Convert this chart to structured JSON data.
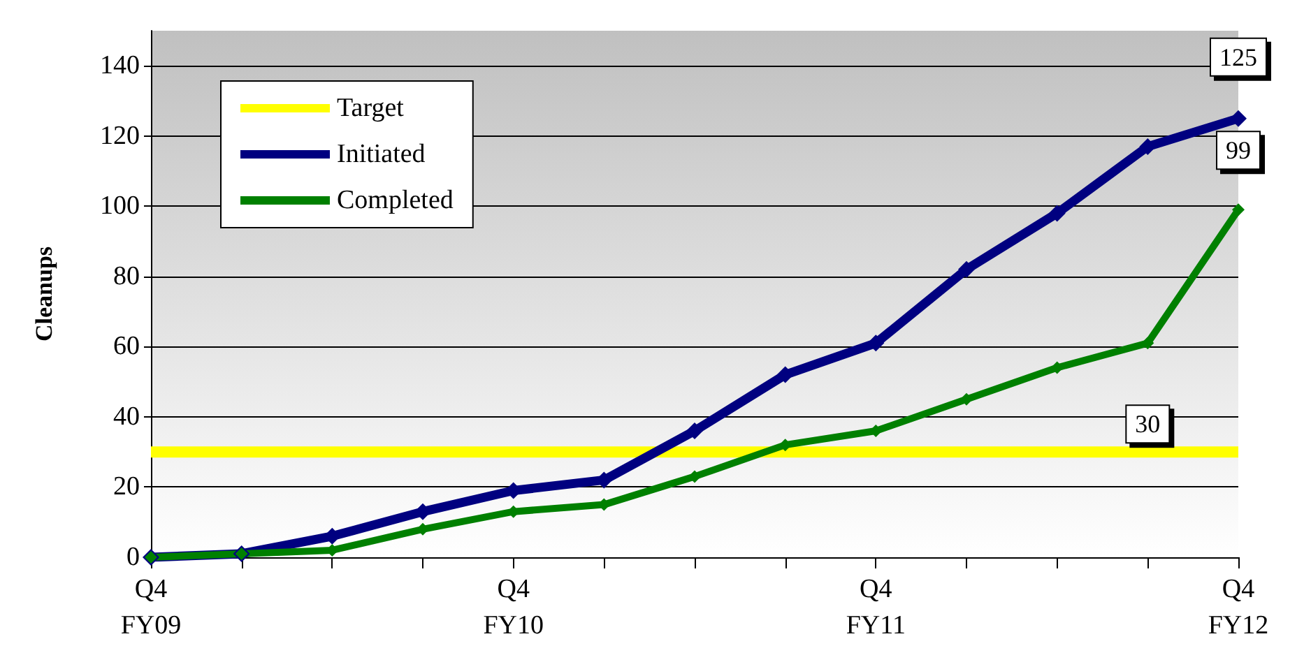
{
  "chart_data": {
    "type": "line",
    "ylabel": "Cleanups",
    "categories": [
      "Q4\nFY09",
      null,
      null,
      null,
      "Q4\nFY10",
      null,
      null,
      null,
      "Q4\nFY11",
      null,
      null,
      null,
      "Q4\nFY12"
    ],
    "series": [
      {
        "name": "Target",
        "color": "#ffff00",
        "marker": "none",
        "values": [
          30,
          30,
          30,
          30,
          30,
          30,
          30,
          30,
          30,
          30,
          30,
          30,
          30
        ],
        "value_labels": [
          null,
          null,
          null,
          null,
          null,
          null,
          null,
          null,
          null,
          null,
          null,
          "30",
          null
        ]
      },
      {
        "name": "Initiated",
        "color": "#000080",
        "values": [
          0,
          1,
          6,
          13,
          19,
          22,
          36,
          52,
          61,
          82,
          98,
          117,
          125
        ],
        "value_labels": [
          null,
          null,
          null,
          null,
          null,
          null,
          null,
          null,
          null,
          null,
          null,
          null,
          "125"
        ]
      },
      {
        "name": "Completed",
        "color": "#008000",
        "values": [
          0,
          1,
          2,
          8,
          13,
          15,
          23,
          32,
          36,
          45,
          54,
          61,
          99
        ],
        "value_labels": [
          null,
          null,
          null,
          null,
          null,
          null,
          null,
          null,
          null,
          null,
          null,
          null,
          "99"
        ]
      }
    ],
    "ylim": [
      0,
      150
    ],
    "yticks": [
      0,
      20,
      40,
      60,
      80,
      100,
      120,
      140
    ],
    "grid": "y",
    "legend": "top left",
    "marker": "diamond",
    "line_style": "solid"
  }
}
